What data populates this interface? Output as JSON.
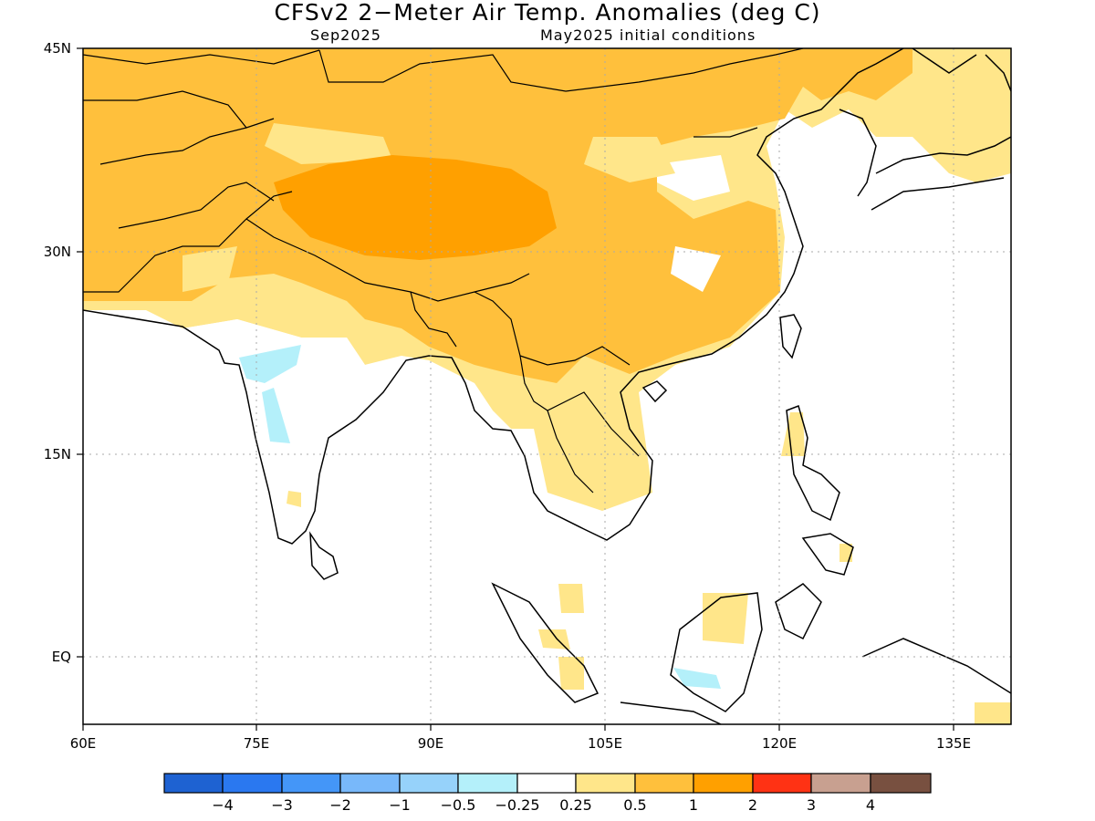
{
  "title": "CFSv2 2−Meter Air Temp. Anomalies (deg C)",
  "subtitle_left": "Sep2025",
  "subtitle_right": "May2025 initial conditions",
  "map": {
    "lon_range": [
      60,
      140
    ],
    "lat_range": [
      -5.5,
      45
    ],
    "lon_ticks": [
      "60E",
      "75E",
      "90E",
      "105E",
      "120E",
      "135E"
    ],
    "lat_ticks": [
      "45N",
      "30N",
      "15N",
      "EQ"
    ]
  },
  "legend": {
    "colors": [
      "#1e62d2",
      "#2a78f0",
      "#4496f8",
      "#78b8fa",
      "#96d2fa",
      "#b4f0fa",
      "#ffffff",
      "#ffe68a",
      "#ffc03c",
      "#ffa000",
      "#ff3214",
      "#c8a090",
      "#785040"
    ],
    "labels": [
      "−4",
      "−3",
      "−2",
      "−1",
      "−0.5",
      "−0.25",
      "0.25",
      "0.5",
      "1",
      "2",
      "3",
      "4"
    ]
  }
}
